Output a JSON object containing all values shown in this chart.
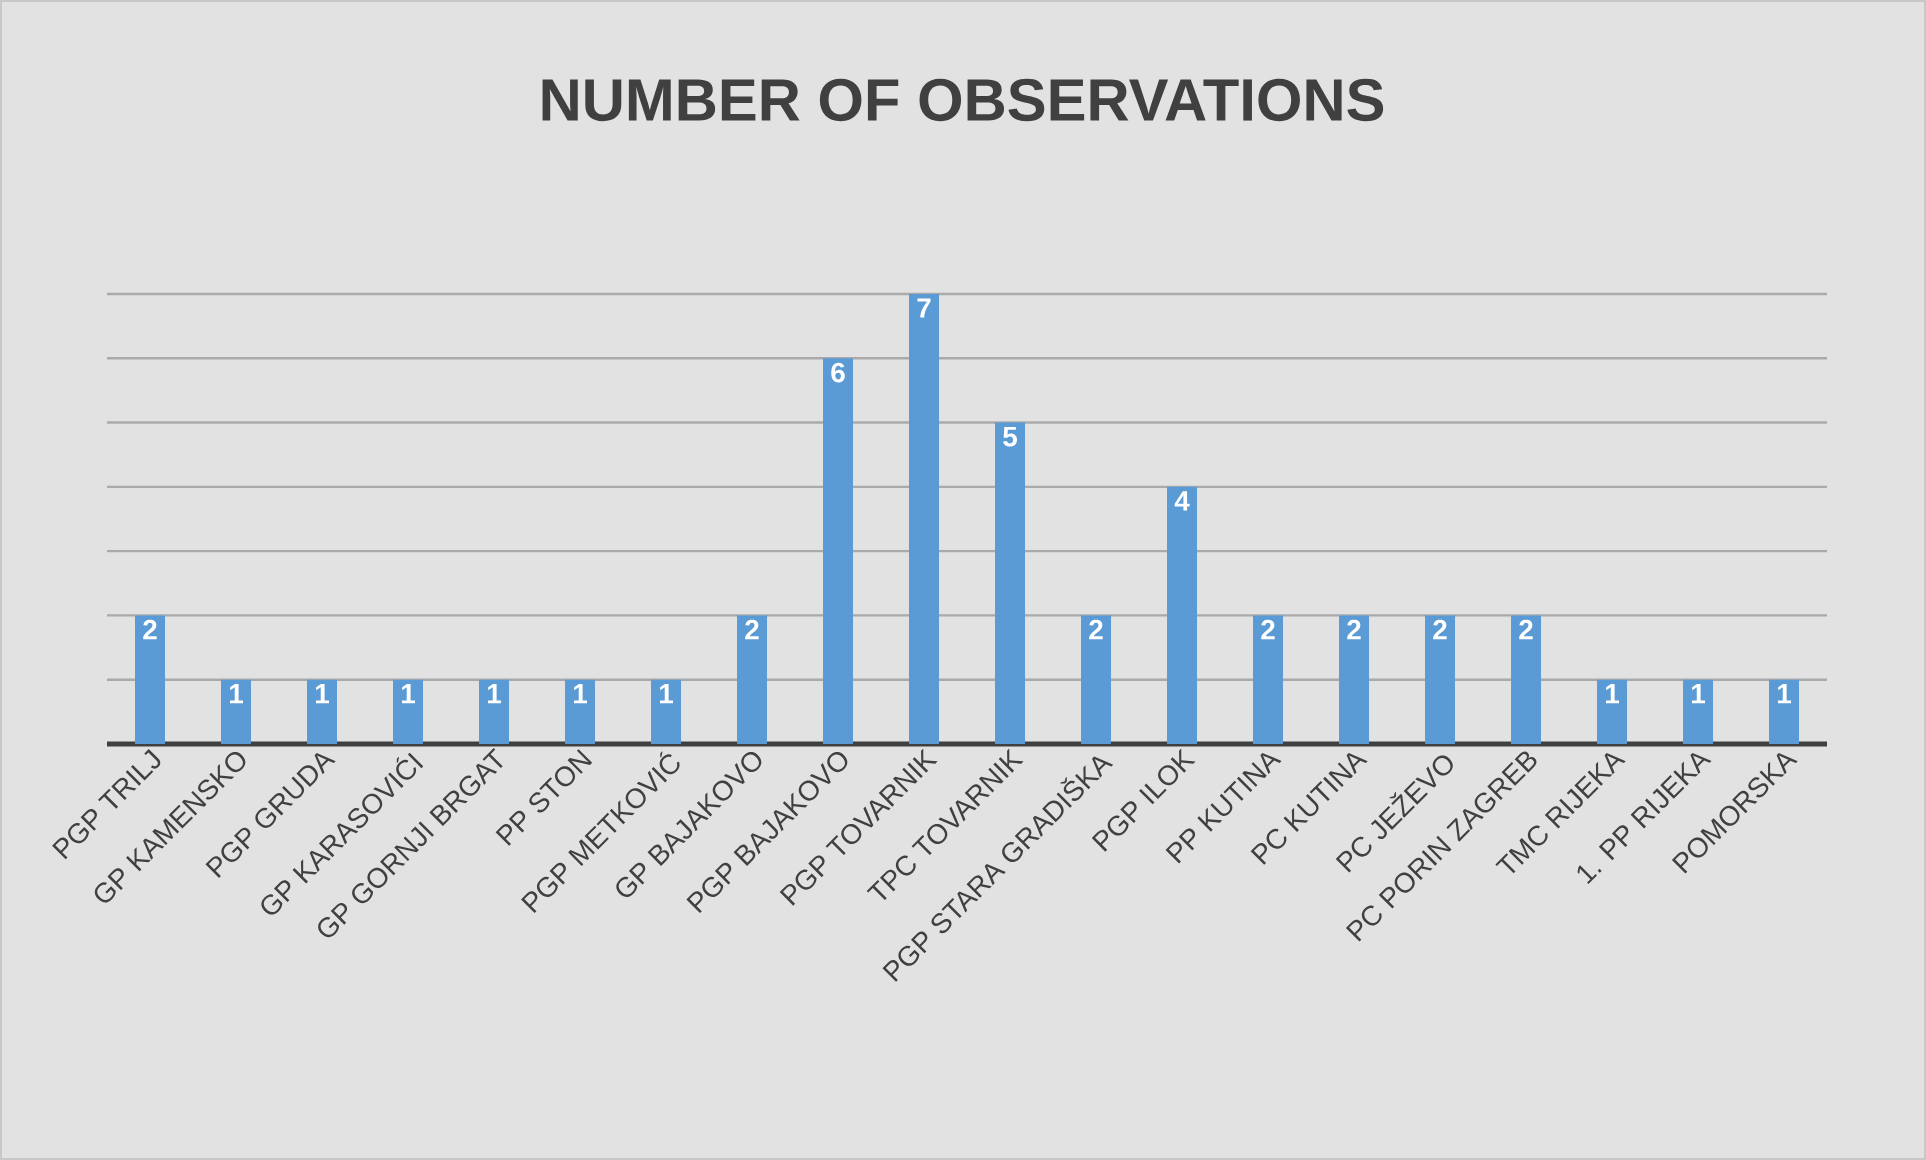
{
  "chart_data": {
    "type": "bar",
    "title": "NUMBER OF OBSERVATIONS",
    "categories": [
      "PGP TRILJ",
      "GP KAMENSKO",
      "PGP GRUDA",
      "GP KARASOVIĆI",
      "GP GORNJI BRGAT",
      "PP STON",
      "PGP METKOVIĆ",
      "GP BAJAKOVO",
      "PGP BAJAKOVO",
      "PGP TOVARNIK",
      "TPC TOVARNIK",
      "PGP STARA GRADIŠKA",
      "PGP ILOK",
      "PP KUTINA",
      "PC KUTINA",
      "PC JEŽEVO",
      "PC PORIN ZAGREB",
      "TMC RIJEKA",
      "1. PP RIJEKA",
      "POMORSKA"
    ],
    "values": [
      2,
      1,
      1,
      1,
      1,
      1,
      1,
      2,
      6,
      7,
      5,
      2,
      4,
      2,
      2,
      2,
      2,
      1,
      1,
      1
    ],
    "color": "#5b9bd5",
    "ylim": [
      0,
      7
    ],
    "yticks": [
      {
        "value": 1,
        "label": null
      },
      {
        "value": 2,
        "label": null
      },
      {
        "value": 3,
        "label": null
      },
      {
        "value": 4,
        "label": null
      },
      {
        "value": 5,
        "label": null
      },
      {
        "value": 6,
        "label": null
      },
      {
        "value": 7,
        "label": null
      }
    ],
    "grid": "y",
    "tick_labels": "x",
    "data_labels": true
  }
}
